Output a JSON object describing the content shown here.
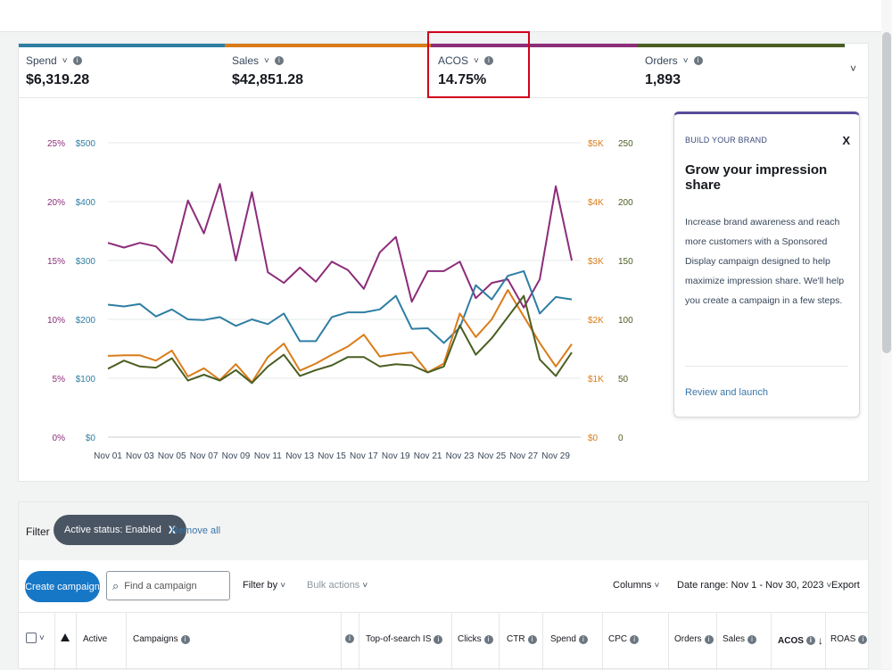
{
  "metrics": [
    {
      "label": "Spend",
      "value": "$6,319.28",
      "color": "#2e7ea3"
    },
    {
      "label": "Sales",
      "value": "$42,851.28",
      "color": "#d97c19"
    },
    {
      "label": "ACOS",
      "value": "14.75%",
      "color": "#8c2d7a"
    },
    {
      "label": "Orders",
      "value": "1,893",
      "color": "#4a5e22"
    }
  ],
  "chart_data": {
    "type": "line",
    "x": [
      "Nov 01",
      "Nov 02",
      "Nov 03",
      "Nov 04",
      "Nov 05",
      "Nov 06",
      "Nov 07",
      "Nov 08",
      "Nov 09",
      "Nov 10",
      "Nov 11",
      "Nov 12",
      "Nov 13",
      "Nov 14",
      "Nov 15",
      "Nov 16",
      "Nov 17",
      "Nov 18",
      "Nov 19",
      "Nov 20",
      "Nov 21",
      "Nov 22",
      "Nov 23",
      "Nov 24",
      "Nov 25",
      "Nov 26",
      "Nov 27",
      "Nov 28",
      "Nov 29",
      "Nov 30"
    ],
    "xticks": [
      "Nov 01",
      "Nov 03",
      "Nov 05",
      "Nov 07",
      "Nov 09",
      "Nov 11",
      "Nov 13",
      "Nov 15",
      "Nov 17",
      "Nov 19",
      "Nov 21",
      "Nov 23",
      "Nov 25",
      "Nov 27",
      "Nov 29"
    ],
    "axes": {
      "left_acos": {
        "ticks": [
          "0%",
          "5%",
          "10%",
          "15%",
          "20%",
          "25%"
        ],
        "range": [
          0,
          25
        ],
        "color": "#8c2d7a"
      },
      "left_spend": {
        "ticks": [
          "$0",
          "$100",
          "$200",
          "$300",
          "$400",
          "$500"
        ],
        "range": [
          0,
          500
        ],
        "color": "#2e7ea3"
      },
      "right_sales": {
        "ticks": [
          "$0",
          "$1K",
          "$2K",
          "$3K",
          "$4K",
          "$5K"
        ],
        "range": [
          0,
          5000
        ],
        "color": "#d97c19"
      },
      "right_orders": {
        "ticks": [
          "0",
          "50",
          "100",
          "150",
          "200",
          "250"
        ],
        "range": [
          0,
          250
        ],
        "color": "#4a5e22"
      }
    },
    "series": [
      {
        "name": "ACOS",
        "axis": "left_acos",
        "color": "#8c2d7a",
        "values": [
          16.5,
          16.1,
          16.5,
          16.2,
          14.8,
          20.1,
          17.3,
          21.5,
          15.0,
          20.8,
          14.0,
          13.1,
          14.4,
          13.2,
          14.9,
          14.2,
          12.6,
          15.7,
          17.0,
          11.5,
          14.1,
          14.1,
          14.9,
          11.8,
          13.1,
          13.4,
          11.0,
          13.4,
          21.3,
          15.0
        ]
      },
      {
        "name": "Spend",
        "axis": "left_spend",
        "color": "#2e7ea3",
        "values": [
          225,
          222,
          226,
          205,
          217,
          200,
          199,
          204,
          189,
          200,
          192,
          210,
          163,
          163,
          204,
          212,
          212,
          217,
          240,
          184,
          185,
          160,
          186,
          258,
          234,
          274,
          282,
          210,
          238,
          234
        ]
      },
      {
        "name": "Sales",
        "axis": "right_sales",
        "color": "#d97c19",
        "values": [
          1380,
          1390,
          1390,
          1300,
          1470,
          1030,
          1170,
          970,
          1240,
          930,
          1360,
          1590,
          1130,
          1250,
          1400,
          1540,
          1740,
          1370,
          1410,
          1440,
          1100,
          1250,
          2100,
          1700,
          2000,
          2500,
          2050,
          1600,
          1200,
          1580
        ]
      },
      {
        "name": "Orders",
        "axis": "right_orders",
        "color": "#4a5e22",
        "values": [
          58,
          65,
          60,
          59,
          67,
          48,
          53,
          48,
          57,
          46,
          60,
          70,
          52,
          57,
          61,
          68,
          68,
          60,
          62,
          61,
          55,
          60,
          95,
          70,
          84,
          102,
          120,
          66,
          52,
          72
        ]
      }
    ]
  },
  "promo": {
    "kicker": "BUILD YOUR BRAND",
    "title": "Grow your impression share",
    "body": "Increase brand awareness and reach more customers with a Sponsored Display campaign designed to help maximize impression share. We'll help you create a campaign in a few steps.",
    "link": "Review and launch",
    "close": "X"
  },
  "filter": {
    "label": "Filter",
    "chip": "Active status: Enabled",
    "chip_close": "X",
    "remove_all": "Remove all"
  },
  "toolbar": {
    "create": "Create campaign",
    "search_placeholder": "Find a campaign",
    "filter_by": "Filter by",
    "bulk_actions": "Bulk actions",
    "columns": "Columns",
    "date_range": "Date range: Nov 1 - Nov 30, 2023",
    "export": "Export"
  },
  "table": {
    "headers": {
      "active": "Active",
      "campaigns": "Campaigns",
      "top_of_search": "Top-of-search IS",
      "clicks": "Clicks",
      "ctr": "CTR",
      "spend": "Spend",
      "cpc": "CPC",
      "orders": "Orders",
      "sales": "Sales",
      "acos": "ACOS",
      "roas": "ROAS"
    }
  },
  "icons": {
    "info": "i",
    "chevron": "˅",
    "sort_desc": "↓",
    "search": "⌕"
  }
}
